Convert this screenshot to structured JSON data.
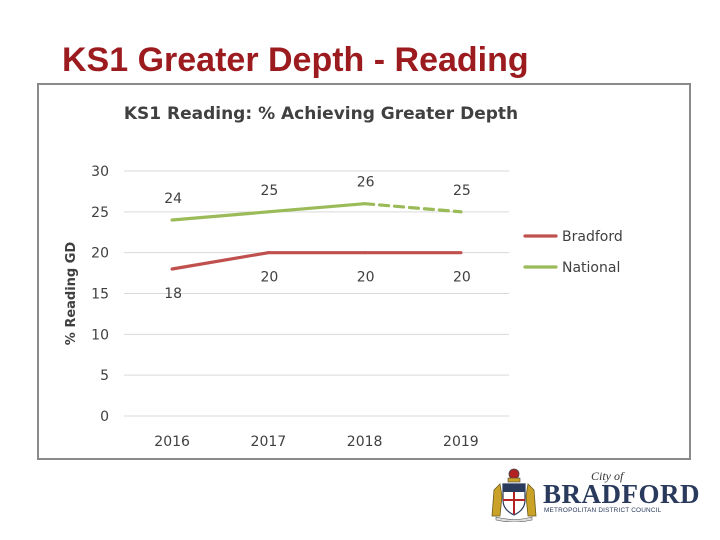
{
  "slide": {
    "title": "KS1 Greater Depth - Reading"
  },
  "chart_data": {
    "type": "line",
    "title": "KS1 Reading: % Achieving Greater Depth",
    "ylabel": "% Reading GD",
    "xlabel": "",
    "categories": [
      "2016",
      "2017",
      "2018",
      "2019"
    ],
    "ylim": [
      0,
      30
    ],
    "yticks": [
      "0",
      "5",
      "10",
      "15",
      "20",
      "25",
      "30"
    ],
    "grid": true,
    "legend_position": "right",
    "series": [
      {
        "name": "Bradford",
        "values": [
          18,
          20,
          20,
          20
        ],
        "labels": [
          "18",
          "20",
          "20",
          "20"
        ],
        "label_side": "below",
        "color": "#c0504d",
        "dashed_from_index": null
      },
      {
        "name": "National",
        "values": [
          24,
          25,
          26,
          25
        ],
        "labels": [
          "24",
          "25",
          "26",
          "25"
        ],
        "label_side": "above",
        "color": "#9bbb59",
        "dashed_from_index": 2
      }
    ]
  },
  "logo": {
    "city_of": "City of",
    "name": "BRADFORD",
    "subtitle": "METROPOLITAN DISTRICT COUNCIL",
    "colors": {
      "navy": "#2a3a5c",
      "gold": "#c9a227",
      "red": "#b22222"
    }
  },
  "colors": {
    "title": "#9b1b1f",
    "frame": "#8a8a8a",
    "grid": "#d9d9d9",
    "text": "#404040"
  }
}
